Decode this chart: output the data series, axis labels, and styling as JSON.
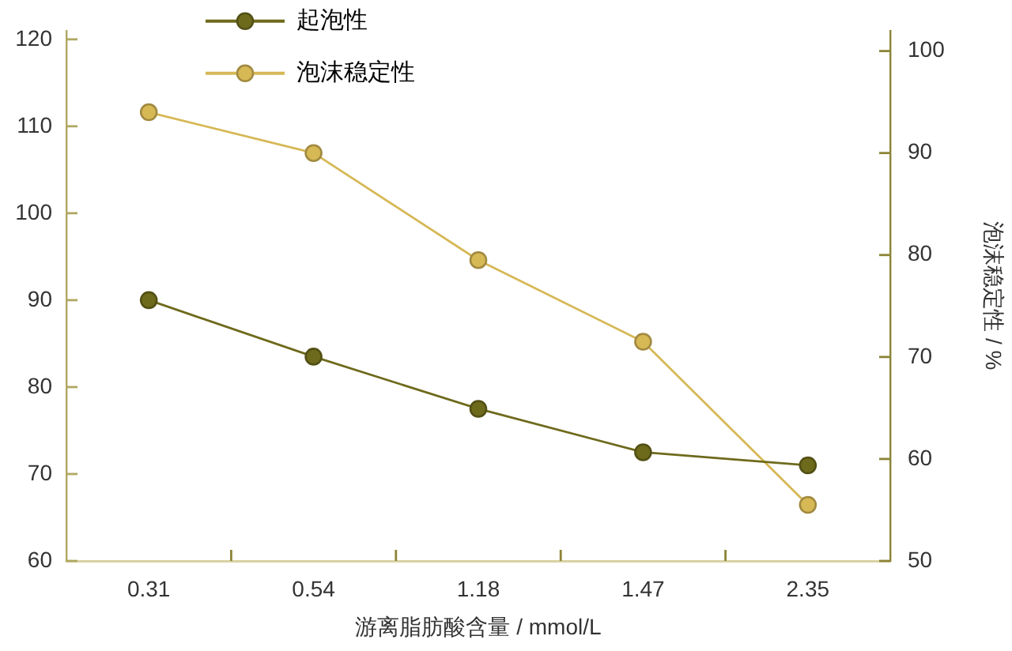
{
  "chart_data": {
    "type": "line",
    "categories": [
      "0.31",
      "0.54",
      "1.18",
      "1.47",
      "2.35"
    ],
    "xlabel": "游离脂肪酸含量 / mmol/L",
    "y2label": "泡沫稳定性 / %",
    "series": [
      {
        "name": "起泡性",
        "color": "#6e6a1c",
        "values": [
          90,
          83.5,
          77.5,
          72.5,
          71
        ]
      },
      {
        "name": "泡沫稳定性",
        "color": "#d6b855",
        "axis": "y2",
        "values": [
          94,
          90,
          79.5,
          71.5,
          55.5
        ]
      }
    ],
    "ylim": [
      60,
      121
    ],
    "yticks": [
      60,
      70,
      80,
      90,
      100,
      110,
      120
    ],
    "y2lim": [
      50,
      102
    ],
    "y2ticks": [
      50,
      60,
      70,
      80,
      90,
      100
    ],
    "grid": false,
    "legend": "top left",
    "marker": "circle",
    "line_style": "solid"
  }
}
